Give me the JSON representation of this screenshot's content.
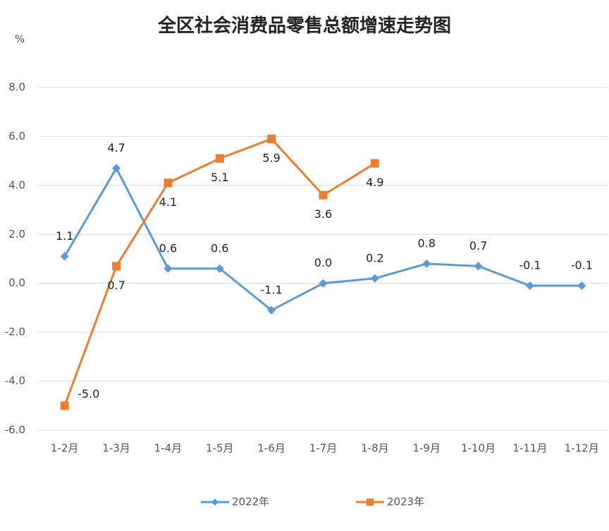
{
  "chart_data": {
    "type": "line",
    "title": "全区社会消费品零售总额增速走势图",
    "y_label": "%",
    "categories": [
      "1-2月",
      "1-3月",
      "1-4月",
      "1-5月",
      "1-6月",
      "1-7月",
      "1-8月",
      "1-9月",
      "1-10月",
      "1-11月",
      "1-12月"
    ],
    "series": [
      {
        "name": "2022年",
        "color": "#5b9bd5",
        "marker": "diamond",
        "values": [
          1.1,
          4.7,
          0.6,
          0.6,
          -1.1,
          0.0,
          0.2,
          0.8,
          0.7,
          -0.1,
          -0.1
        ],
        "value_labels": [
          "1.1",
          "4.7",
          "0.6",
          "0.6",
          "-1.1",
          "0.0",
          "0.2",
          "0.8",
          "0.7",
          "-0.1",
          "-0.1"
        ]
      },
      {
        "name": "2023年",
        "color": "#ed7d31",
        "marker": "square",
        "values": [
          -5.0,
          0.7,
          4.1,
          5.1,
          5.9,
          3.6,
          4.9,
          null,
          null,
          null,
          null
        ],
        "value_labels": [
          "-5.0",
          "0.7",
          "4.1",
          "5.1",
          "5.9",
          "3.6",
          "4.9",
          null,
          null,
          null,
          null
        ]
      }
    ],
    "ylim": [
      -6,
      8
    ],
    "yticks": [
      {
        "value": -6,
        "label": "-6.0"
      },
      {
        "value": -4,
        "label": "-4.0"
      },
      {
        "value": -2,
        "label": "-2.0"
      },
      {
        "value": 0,
        "label": "0.0"
      },
      {
        "value": 2,
        "label": "2.0"
      },
      {
        "value": 4,
        "label": "4.0"
      },
      {
        "value": 6,
        "label": "6.0"
      },
      {
        "value": 8,
        "label": "8.0"
      }
    ],
    "grid": true,
    "legend": "bottom"
  }
}
